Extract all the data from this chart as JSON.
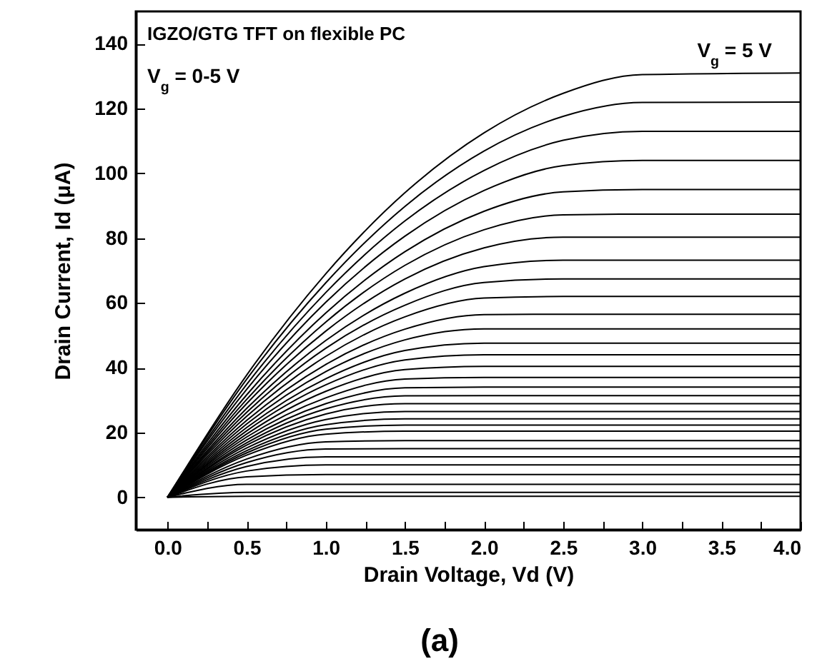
{
  "chart_data": {
    "type": "line",
    "xlabel": "Drain Voltage, Vd (V)",
    "ylabel": "Drain Current, Id (μA)",
    "annotations": [
      "IGZO/GTG TFT on flexible PC",
      "V$_{g}$ = 0-5 V",
      "V$_{g}$ = 5 V",
      "(a)"
    ],
    "x": [
      0,
      0.5,
      1,
      1.5,
      2,
      2.5,
      3,
      4
    ],
    "xlim": [
      -0.2,
      4
    ],
    "ylim": [
      -10,
      150
    ],
    "xticks": [
      {
        "value": 0,
        "label": "0.0"
      },
      {
        "value": 0.25,
        "label": null
      },
      {
        "value": 0.5,
        "label": "0.5"
      },
      {
        "value": 0.75,
        "label": null
      },
      {
        "value": 1,
        "label": "1.0"
      },
      {
        "value": 1.25,
        "label": null
      },
      {
        "value": 1.5,
        "label": "1.5"
      },
      {
        "value": 1.75,
        "label": null
      },
      {
        "value": 2,
        "label": "2.0"
      },
      {
        "value": 2.25,
        "label": null
      },
      {
        "value": 2.5,
        "label": "2.5"
      },
      {
        "value": 2.75,
        "label": null
      },
      {
        "value": 3,
        "label": "3.0"
      },
      {
        "value": 3.25,
        "label": null
      },
      {
        "value": 3.5,
        "label": "3.5"
      },
      {
        "value": 3.75,
        "label": null
      },
      {
        "value": 4,
        "label": "4.0"
      }
    ],
    "yticks": [
      0,
      20,
      40,
      60,
      80,
      100,
      120,
      140
    ],
    "grid": false,
    "marker": "none",
    "line_style": "solid",
    "series": [
      {
        "color": "#000000",
        "values": [
          0,
          37.7,
          69,
          94,
          112.5,
          124.7,
          130.5,
          131
        ]
      },
      {
        "color": "#000000",
        "values": [
          0,
          36.4,
          66.2,
          89.8,
          106.9,
          117.6,
          121.9,
          122
        ]
      },
      {
        "color": "#000000",
        "values": [
          0,
          34.8,
          63.2,
          85.3,
          100.9,
          110.2,
          113,
          113
        ]
      },
      {
        "color": "#000000",
        "values": [
          0,
          33.3,
          60.2,
          80.6,
          94.7,
          102.4,
          104,
          104
        ]
      },
      {
        "color": "#000000",
        "values": [
          0,
          31.6,
          56.9,
          75.8,
          88.3,
          94.3,
          95,
          95
        ]
      },
      {
        "color": "#000000",
        "values": [
          0,
          30.2,
          54.1,
          71.6,
          82.6,
          87.2,
          87.4,
          87.4
        ]
      },
      {
        "color": "#000000",
        "values": [
          0,
          28.9,
          51.3,
          67.4,
          77,
          80.3,
          80.3,
          80.3
        ]
      },
      {
        "color": "#000000",
        "values": [
          0,
          27.4,
          48.4,
          63,
          71.2,
          73.2,
          73.2,
          73.2
        ]
      },
      {
        "color": "#000000",
        "values": [
          0,
          26.2,
          46,
          59.3,
          66.3,
          67.4,
          67.4,
          67.4
        ]
      },
      {
        "color": "#000000",
        "values": [
          0,
          25,
          43.5,
          55.7,
          61.5,
          62,
          62,
          62
        ]
      },
      {
        "color": "#000000",
        "values": [
          0,
          23.7,
          41,
          51.9,
          56.4,
          56.5,
          56.5,
          56.5
        ]
      },
      {
        "color": "#000000",
        "values": [
          0,
          22.6,
          38.8,
          48.6,
          52,
          52,
          52,
          52
        ]
      },
      {
        "color": "#000000",
        "values": [
          0,
          21.5,
          36.6,
          45.3,
          47.6,
          47.6,
          47.6,
          47.6
        ]
      },
      {
        "color": "#000000",
        "values": [
          0,
          20.5,
          34.7,
          42.4,
          44,
          44,
          44,
          44
        ]
      },
      {
        "color": "#000000",
        "values": [
          0,
          19.5,
          32.7,
          39.4,
          40.4,
          40.4,
          40.4,
          40.4
        ]
      },
      {
        "color": "#000000",
        "values": [
          0,
          18.6,
          30.7,
          36.5,
          37,
          37,
          37,
          37
        ]
      },
      {
        "color": "#000000",
        "values": [
          0,
          17.7,
          28.9,
          33.8,
          34,
          34,
          34,
          34
        ]
      },
      {
        "color": "#000000",
        "values": [
          0,
          16.8,
          27.3,
          31.3,
          31.4,
          31.4,
          31.4,
          31.4
        ]
      },
      {
        "color": "#000000",
        "values": [
          0,
          16.1,
          25.7,
          28.9,
          28.9,
          28.9,
          28.9,
          28.9
        ]
      },
      {
        "color": "#000000",
        "values": [
          0,
          15.2,
          24,
          26.5,
          26.5,
          26.5,
          26.5,
          26.5
        ]
      },
      {
        "color": "#000000",
        "values": [
          0,
          14.4,
          22.4,
          24.2,
          24.2,
          24.2,
          24.2,
          24.2
        ]
      },
      {
        "color": "#000000",
        "values": [
          0,
          13.7,
          21,
          22.3,
          22.3,
          22.3,
          22.3,
          22.3
        ]
      },
      {
        "color": "#000000",
        "values": [
          0,
          13,
          19.5,
          20.4,
          20.4,
          20.4,
          20.4,
          20.4
        ]
      },
      {
        "color": "#000000",
        "values": [
          0,
          11.8,
          17.1,
          17.5,
          17.5,
          17.5,
          17.5,
          17.5
        ]
      },
      {
        "color": "#000000",
        "values": [
          0,
          10.7,
          14.9,
          15,
          15,
          15,
          15,
          15
        ]
      },
      {
        "color": "#000000",
        "values": [
          0,
          9.5,
          12.5,
          12.5,
          12.5,
          12.5,
          12.5,
          12.5
        ]
      },
      {
        "color": "#000000",
        "values": [
          0,
          8.1,
          10,
          10,
          10,
          10,
          10,
          10
        ]
      },
      {
        "color": "#000000",
        "values": [
          0,
          6.3,
          7,
          7,
          7,
          7,
          7,
          7
        ]
      },
      {
        "color": "#000000",
        "values": [
          0,
          4,
          4,
          4,
          4,
          4,
          4,
          4
        ]
      },
      {
        "color": "#000000",
        "values": [
          0,
          1.5,
          1.5,
          1.5,
          1.5,
          1.5,
          1.5,
          1.5
        ]
      },
      {
        "color": "#000000",
        "values": [
          0,
          0.3,
          0.3,
          0.3,
          0.3,
          0.3,
          0.3,
          0.3
        ]
      }
    ]
  }
}
